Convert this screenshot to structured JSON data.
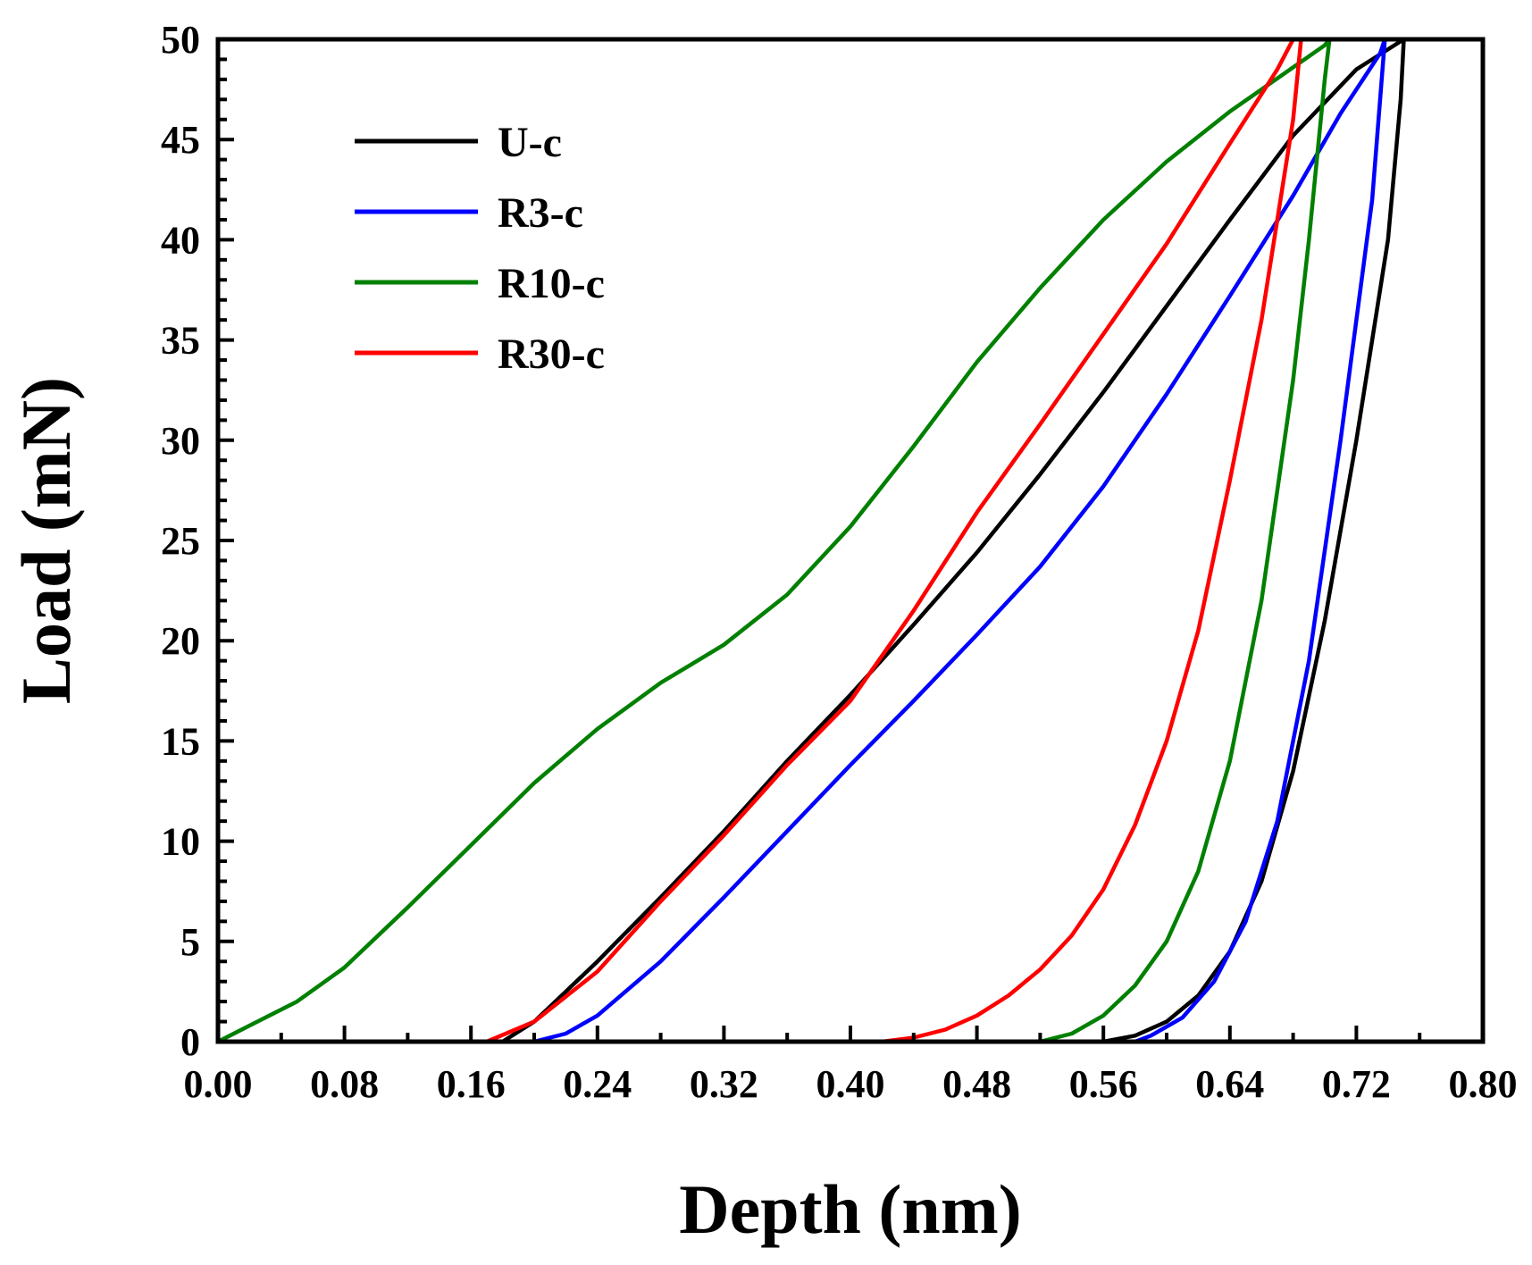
{
  "chart_data": {
    "type": "line",
    "title": "",
    "xlabel": "Depth (nm)",
    "ylabel": "Load (mN)",
    "xlim": [
      0,
      0.8
    ],
    "ylim": [
      0,
      50
    ],
    "xticks": [
      0.0,
      0.08,
      0.16,
      0.24,
      0.32,
      0.4,
      0.48,
      0.56,
      0.64,
      0.72,
      0.8
    ],
    "xtick_labels": [
      "0.00",
      "0.08",
      "0.16",
      "0.24",
      "0.32",
      "0.40",
      "0.48",
      "0.56",
      "0.64",
      "0.72",
      "0.80"
    ],
    "yticks": [
      0,
      5,
      10,
      15,
      20,
      25,
      30,
      35,
      40,
      45,
      50
    ],
    "ytick_labels": [
      "0",
      "5",
      "10",
      "15",
      "20",
      "25",
      "30",
      "35",
      "40",
      "45",
      "50"
    ],
    "grid": false,
    "legend_position": "top-left",
    "series": [
      {
        "name": "U-c",
        "color": "#000000",
        "x": [
          0.0,
          0.18,
          0.2,
          0.24,
          0.28,
          0.32,
          0.36,
          0.4,
          0.44,
          0.48,
          0.52,
          0.56,
          0.6,
          0.64,
          0.68,
          0.72,
          0.75,
          0.748,
          0.74,
          0.72,
          0.7,
          0.68,
          0.66,
          0.64,
          0.62,
          0.6,
          0.58,
          0.56,
          0.55
        ],
        "y": [
          0.0,
          0.0,
          1.0,
          4.0,
          7.2,
          10.5,
          14.0,
          17.3,
          20.8,
          24.4,
          28.3,
          32.4,
          36.7,
          41.0,
          45.2,
          48.5,
          50.0,
          47.0,
          40.0,
          30.0,
          21.0,
          13.5,
          8.0,
          4.5,
          2.3,
          1.0,
          0.3,
          0.0,
          0.0
        ]
      },
      {
        "name": "R3-c",
        "color": "#0000ff",
        "x": [
          0.0,
          0.2,
          0.22,
          0.24,
          0.28,
          0.32,
          0.36,
          0.4,
          0.44,
          0.48,
          0.52,
          0.56,
          0.6,
          0.64,
          0.68,
          0.71,
          0.735,
          0.738,
          0.73,
          0.71,
          0.69,
          0.67,
          0.65,
          0.63,
          0.61,
          0.59,
          0.58,
          0.57
        ],
        "y": [
          0.0,
          0.0,
          0.4,
          1.3,
          4.0,
          7.2,
          10.5,
          13.8,
          17.0,
          20.3,
          23.7,
          27.7,
          32.3,
          37.2,
          42.2,
          46.3,
          49.3,
          50.0,
          42.0,
          30.0,
          19.0,
          11.0,
          6.0,
          3.0,
          1.2,
          0.3,
          0.0,
          0.0
        ]
      },
      {
        "name": "R10-c",
        "color": "#008000",
        "x": [
          0.0,
          0.02,
          0.05,
          0.08,
          0.12,
          0.16,
          0.2,
          0.24,
          0.28,
          0.32,
          0.36,
          0.4,
          0.44,
          0.48,
          0.52,
          0.56,
          0.6,
          0.64,
          0.68,
          0.7,
          0.703,
          0.7,
          0.69,
          0.68,
          0.66,
          0.64,
          0.62,
          0.6,
          0.58,
          0.56,
          0.54,
          0.52,
          0.51
        ],
        "y": [
          0.0,
          0.8,
          2.0,
          3.7,
          6.7,
          9.8,
          12.9,
          15.6,
          17.9,
          19.8,
          22.3,
          25.7,
          29.7,
          33.9,
          37.6,
          41.0,
          43.9,
          46.4,
          48.6,
          49.7,
          50.0,
          48.0,
          40.0,
          33.0,
          22.0,
          14.0,
          8.5,
          5.0,
          2.8,
          1.3,
          0.4,
          0.0,
          0.0
        ]
      },
      {
        "name": "R30-c",
        "color": "#ff0000",
        "x": [
          0.0,
          0.17,
          0.2,
          0.24,
          0.28,
          0.32,
          0.36,
          0.4,
          0.44,
          0.48,
          0.52,
          0.56,
          0.6,
          0.64,
          0.67,
          0.68,
          0.685,
          0.68,
          0.67,
          0.66,
          0.64,
          0.62,
          0.6,
          0.58,
          0.56,
          0.54,
          0.52,
          0.5,
          0.48,
          0.46,
          0.44,
          0.42,
          0.4
        ],
        "y": [
          0.0,
          0.0,
          1.0,
          3.5,
          7.0,
          10.3,
          13.8,
          17.0,
          21.5,
          26.4,
          30.8,
          35.3,
          39.8,
          44.8,
          48.5,
          50.0,
          50.0,
          46.0,
          41.0,
          36.0,
          28.0,
          20.5,
          15.0,
          10.8,
          7.6,
          5.3,
          3.6,
          2.3,
          1.3,
          0.6,
          0.2,
          0.0,
          0.0
        ]
      }
    ]
  }
}
